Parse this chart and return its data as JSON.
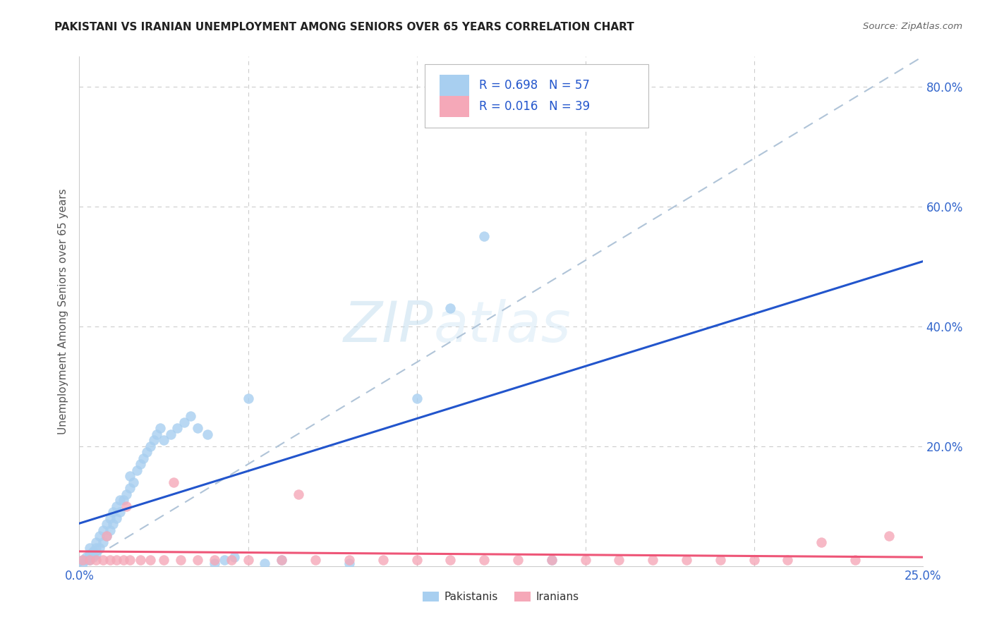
{
  "title": "PAKISTANI VS IRANIAN UNEMPLOYMENT AMONG SENIORS OVER 65 YEARS CORRELATION CHART",
  "source": "Source: ZipAtlas.com",
  "ylabel": "Unemployment Among Seniors over 65 years",
  "xlim": [
    0.0,
    0.25
  ],
  "ylim": [
    0.0,
    0.85
  ],
  "x_ticks": [
    0.0,
    0.05,
    0.1,
    0.15,
    0.2,
    0.25
  ],
  "x_tick_labels": [
    "0.0%",
    "",
    "",
    "",
    "",
    "25.0%"
  ],
  "y_ticks": [
    0.0,
    0.2,
    0.4,
    0.6,
    0.8
  ],
  "y_tick_labels": [
    "",
    "20.0%",
    "40.0%",
    "60.0%",
    "80.0%"
  ],
  "pakistani_R": "0.698",
  "pakistani_N": "57",
  "iranian_R": "0.016",
  "iranian_N": "39",
  "pakistani_color": "#a8cff0",
  "iranian_color": "#f5a8b8",
  "pakistani_line_color": "#2255cc",
  "iranian_line_color": "#ee5577",
  "diagonal_color": "#b0c4d8",
  "watermark_color": "#d5e8f5",
  "pak_x": [
    0.001,
    0.001,
    0.002,
    0.002,
    0.003,
    0.003,
    0.003,
    0.004,
    0.004,
    0.005,
    0.005,
    0.005,
    0.006,
    0.006,
    0.007,
    0.007,
    0.008,
    0.008,
    0.009,
    0.009,
    0.01,
    0.01,
    0.011,
    0.011,
    0.012,
    0.012,
    0.013,
    0.014,
    0.015,
    0.015,
    0.016,
    0.017,
    0.018,
    0.019,
    0.02,
    0.021,
    0.022,
    0.023,
    0.024,
    0.025,
    0.027,
    0.029,
    0.031,
    0.033,
    0.035,
    0.038,
    0.04,
    0.043,
    0.046,
    0.05,
    0.055,
    0.06,
    0.08,
    0.1,
    0.11,
    0.12,
    0.14
  ],
  "pak_y": [
    0.005,
    0.01,
    0.01,
    0.015,
    0.01,
    0.02,
    0.03,
    0.015,
    0.025,
    0.02,
    0.03,
    0.04,
    0.03,
    0.05,
    0.04,
    0.06,
    0.05,
    0.07,
    0.06,
    0.08,
    0.07,
    0.09,
    0.08,
    0.1,
    0.09,
    0.11,
    0.11,
    0.12,
    0.13,
    0.15,
    0.14,
    0.16,
    0.17,
    0.18,
    0.19,
    0.2,
    0.21,
    0.22,
    0.23,
    0.21,
    0.22,
    0.23,
    0.24,
    0.25,
    0.23,
    0.22,
    0.005,
    0.01,
    0.015,
    0.28,
    0.005,
    0.01,
    0.005,
    0.28,
    0.43,
    0.55,
    0.01
  ],
  "iran_x": [
    0.001,
    0.003,
    0.005,
    0.007,
    0.009,
    0.011,
    0.013,
    0.015,
    0.018,
    0.021,
    0.025,
    0.03,
    0.035,
    0.04,
    0.045,
    0.05,
    0.06,
    0.07,
    0.08,
    0.09,
    0.1,
    0.11,
    0.12,
    0.13,
    0.14,
    0.15,
    0.16,
    0.17,
    0.18,
    0.19,
    0.2,
    0.21,
    0.22,
    0.23,
    0.008,
    0.014,
    0.028,
    0.065,
    0.24
  ],
  "iran_y": [
    0.01,
    0.01,
    0.01,
    0.01,
    0.01,
    0.01,
    0.01,
    0.01,
    0.01,
    0.01,
    0.01,
    0.01,
    0.01,
    0.01,
    0.01,
    0.01,
    0.01,
    0.01,
    0.01,
    0.01,
    0.01,
    0.01,
    0.01,
    0.01,
    0.01,
    0.01,
    0.01,
    0.01,
    0.01,
    0.01,
    0.01,
    0.01,
    0.04,
    0.01,
    0.05,
    0.1,
    0.14,
    0.12,
    0.05
  ]
}
